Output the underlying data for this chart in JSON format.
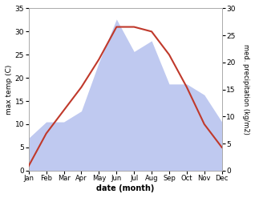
{
  "months": [
    "Jan",
    "Feb",
    "Mar",
    "Apr",
    "May",
    "Jun",
    "Jul",
    "Aug",
    "Sep",
    "Oct",
    "Nov",
    "Dec"
  ],
  "temperature": [
    1,
    8,
    13,
    18,
    24,
    31,
    31,
    30,
    25,
    18,
    10,
    5
  ],
  "precipitation": [
    6,
    9,
    9,
    11,
    20,
    28,
    22,
    24,
    16,
    16,
    14,
    9
  ],
  "temp_color": "#c0392b",
  "precip_fill_color": "#bfc9f0",
  "temp_ylim": [
    0,
    35
  ],
  "precip_ylim": [
    0,
    30
  ],
  "temp_yticks": [
    0,
    5,
    10,
    15,
    20,
    25,
    30,
    35
  ],
  "precip_yticks": [
    0,
    5,
    10,
    15,
    20,
    25,
    30
  ],
  "xlabel": "date (month)",
  "ylabel_left": "max temp (C)",
  "ylabel_right": "med. precipitation (kg/m2)",
  "background_color": "#ffffff"
}
